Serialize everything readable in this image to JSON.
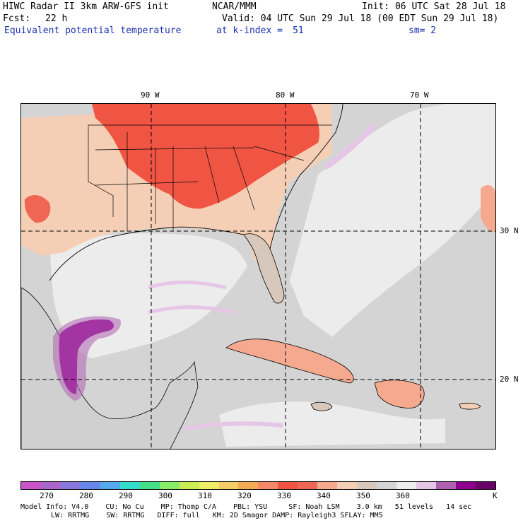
{
  "header": {
    "title": "HIWC Radar II 3km ARW-GFS init",
    "org": "NCAR/MMM",
    "init": "Init: 06 UTC Sat 28 Jul 18",
    "fcst_label": "Fcst:",
    "fcst_value": "22 h",
    "valid": "Valid: 04 UTC Sun 29 Jul 18 (00 EDT Sun 29 Jul 18)",
    "field": "Equivalent potential temperature",
    "level": "at k-index =",
    "level_value": "51",
    "smooth": "sm= 2"
  },
  "axes": {
    "lon_labels": [
      "90 W",
      "80 W",
      "70 W"
    ],
    "lat_labels": [
      "30 N",
      "20 N"
    ]
  },
  "colorbar": {
    "colors": [
      "#cc55cc",
      "#aa66cc",
      "#8877dd",
      "#6688ee",
      "#55aaee",
      "#33ddcc",
      "#44dd88",
      "#88ee66",
      "#ccee55",
      "#eeee66",
      "#f5cc66",
      "#f5aa55",
      "#f58866",
      "#f05544",
      "#f06655",
      "#f5aa90",
      "#f5cfb5",
      "#d8c8bc",
      "#d4d4d4",
      "#ececec",
      "#e6c6e6",
      "#b060b0",
      "#900090",
      "#6a006a"
    ],
    "ticks": [
      "270",
      "280",
      "290",
      "300",
      "310",
      "320",
      "330",
      "340",
      "350",
      "360"
    ],
    "unit": "K"
  },
  "model_info": {
    "line1": "Model Info: V4.0    CU: No Cu    MP: Thomp C/A    PBL: YSU     SF: Noah LSM    3.0 km   51 levels   14 sec",
    "line2": "LW: RRTMG    SW: RRTMG   DIFF: full   KM: 2D Smagor DAMP: Rayleigh3 SFLAY: MM5"
  },
  "legend_colors": {
    "hot": "#f05544",
    "warm": "#f5cfb5",
    "cool": "#ececec",
    "lilac": "#e6c6e6",
    "purple": "#900090"
  }
}
